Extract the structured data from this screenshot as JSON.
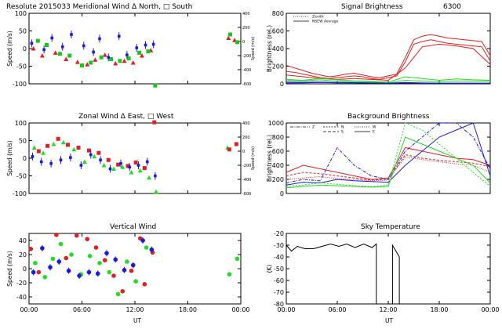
{
  "colors": {
    "north": "#e02020",
    "south": "#ff3030",
    "east": "#1a1ae0",
    "west": "#18c818",
    "green": "#22dd22",
    "red": "#e02020",
    "blue": "#1a1ae0",
    "dark_red": "#b00000"
  },
  "titles": {
    "merid": "Resolute   2015033     Meridional Wind   Δ North, □ South",
    "zonal": "Zonal Wind      Δ East, □ West",
    "vert": "Vertical Wind",
    "sig_left": "Signal Brightness",
    "sig_right": "6300",
    "bg": "Background Brightness",
    "sky": "Sky Temperature"
  },
  "ylabels": {
    "speed": "Speed (m/s)",
    "bright": "Brightness (rel.)",
    "temp": "(K)"
  },
  "xlabel": "UT",
  "xticks": [
    "00:00",
    "06:00",
    "12:00",
    "18:00",
    "00:00"
  ],
  "sig_legend": {
    "zenith": "Zenith",
    "nsew": "NSEW Average"
  },
  "bg_legend": {
    "z": "Z",
    "n": "N",
    "s": "S",
    "w": "W",
    "e": "E"
  },
  "chart_data": [
    {
      "type": "scatter",
      "title": "Meridional Wind",
      "xlabel": "",
      "ylabel": "Speed (m/s)",
      "ylim": [
        -100,
        100
      ],
      "yticks": [
        -100,
        -50,
        0,
        50,
        100
      ],
      "right_ylabel": "Speed (m/s)",
      "right_ylim": [
        -600,
        400
      ],
      "right_yticks": [
        -600,
        -400,
        -200,
        0,
        200,
        400
      ],
      "series": [
        {
          "name": "North",
          "marker": "triangle",
          "color": "red",
          "x": [
            0.5,
            1.5,
            3.0,
            4.2,
            5.5,
            6.6,
            7.5,
            8.6,
            9.8,
            10.8,
            11.8,
            12.8,
            13.8,
            22.6,
            23.3
          ],
          "y": [
            0,
            -20,
            -12,
            -30,
            -38,
            -45,
            -32,
            -18,
            -42,
            -35,
            -40,
            -20,
            -5,
            30,
            24
          ]
        },
        {
          "name": "South",
          "marker": "square",
          "color": "west",
          "x": [
            1.0,
            2.0,
            3.5,
            4.6,
            6.0,
            7.0,
            8.2,
            9.3,
            10.3,
            11.3,
            12.5,
            13.5,
            14.3,
            22.8,
            23.6
          ],
          "y": [
            22,
            10,
            -15,
            -20,
            -48,
            -40,
            -25,
            -30,
            -35,
            -28,
            -12,
            -8,
            -105,
            40,
            18
          ]
        },
        {
          "name": "Zenith",
          "marker": "errorbar",
          "color": "blue",
          "x": [
            0.3,
            1.7,
            2.6,
            3.8,
            4.8,
            6.2,
            7.3,
            8.0,
            9.0,
            10.2,
            11.1,
            12.2,
            13.2,
            14.1
          ],
          "y": [
            15,
            -3,
            30,
            5,
            40,
            8,
            -10,
            28,
            -25,
            35,
            -18,
            2,
            10,
            12
          ]
        }
      ]
    },
    {
      "type": "scatter",
      "title": "Zonal Wind",
      "xlabel": "",
      "ylabel": "Speed (m/s)",
      "ylim": [
        -100,
        100
      ],
      "yticks": [
        -100,
        -50,
        0,
        50,
        100
      ],
      "right_ylabel": "Speed (m/s)",
      "right_ylim": [
        -600,
        400
      ],
      "right_yticks": [
        -600,
        -400,
        -200,
        0,
        200,
        400
      ],
      "series": [
        {
          "name": "East",
          "marker": "triangle",
          "color": "green",
          "x": [
            0.6,
            1.6,
            2.8,
            3.9,
            5.1,
            6.3,
            7.4,
            8.5,
            9.6,
            10.6,
            11.6,
            12.6,
            13.6,
            14.4,
            22.5
          ],
          "y": [
            30,
            15,
            40,
            45,
            25,
            -10,
            5,
            -20,
            -30,
            -25,
            -40,
            -35,
            -55,
            -95,
            30
          ]
        },
        {
          "name": "West",
          "marker": "square",
          "color": "red",
          "x": [
            1.1,
            2.1,
            3.3,
            4.4,
            5.6,
            6.8,
            7.9,
            9.0,
            10.1,
            11.2,
            12.1,
            13.1,
            14.2,
            22.7,
            23.5
          ],
          "y": [
            20,
            35,
            55,
            38,
            30,
            22,
            15,
            -5,
            -18,
            -22,
            -12,
            -28,
            102,
            25,
            40
          ]
        },
        {
          "name": "Zenith",
          "marker": "errorbar",
          "color": "blue",
          "x": [
            0.4,
            1.4,
            2.5,
            3.6,
            4.7,
            5.9,
            7.0,
            8.1,
            9.2,
            10.4,
            11.4,
            12.4,
            13.4,
            14.3
          ],
          "y": [
            5,
            -10,
            -15,
            -5,
            2,
            -20,
            10,
            -5,
            -30,
            -15,
            -25,
            -20,
            -10,
            -50
          ]
        }
      ]
    },
    {
      "type": "scatter",
      "title": "Vertical Wind",
      "xlabel": "UT",
      "ylabel": "Speed (m/s)",
      "ylim": [
        -50,
        50
      ],
      "yticks": [
        -40,
        -20,
        0,
        20,
        40
      ],
      "series": [
        {
          "name": "red",
          "color": "red",
          "x": [
            0.2,
            1.1,
            3.1,
            4.2,
            5.4,
            6.6,
            7.6,
            8.6,
            9.6,
            10.6,
            11.6,
            12.6,
            13.1,
            14.0
          ],
          "y": [
            28,
            -5,
            48,
            15,
            47,
            42,
            30,
            12,
            -10,
            -32,
            -3,
            43,
            -22,
            23
          ]
        },
        {
          "name": "green",
          "color": "green",
          "x": [
            0.7,
            1.8,
            2.7,
            3.6,
            4.8,
            5.9,
            6.9,
            8.0,
            9.1,
            10.1,
            11.1,
            12.1,
            13.3,
            22.7,
            23.6
          ],
          "y": [
            8,
            -12,
            14,
            35,
            20,
            -8,
            18,
            8,
            -5,
            -36,
            10,
            -18,
            30,
            -8,
            14
          ]
        },
        {
          "name": "blue",
          "color": "blue",
          "x": [
            0.5,
            1.5,
            2.4,
            3.4,
            4.5,
            5.7,
            6.8,
            7.8,
            8.8,
            9.8,
            10.8,
            11.8,
            12.9,
            13.9
          ],
          "y": [
            -5,
            29,
            2,
            10,
            -3,
            -10,
            -5,
            -7,
            22,
            13,
            -2,
            5,
            40,
            27
          ]
        }
      ]
    },
    {
      "type": "line",
      "title": "Signal Brightness  6300",
      "xlabel": "",
      "ylabel": "Brightness (rel.)",
      "ylim": [
        0,
        800
      ],
      "yticks": [
        0,
        200,
        400,
        600,
        800
      ],
      "series": [
        {
          "color": "red",
          "x": [
            0,
            1,
            2,
            3,
            4,
            5,
            6,
            7,
            8,
            9,
            10,
            11,
            12,
            13,
            14,
            15,
            16,
            17,
            18,
            19,
            20,
            21,
            22,
            23,
            24
          ],
          "y": [
            210,
            180,
            150,
            120,
            100,
            80,
            90,
            110,
            120,
            100,
            80,
            70,
            90,
            110,
            300,
            500,
            540,
            560,
            540,
            520,
            510,
            500,
            490,
            480,
            320
          ]
        },
        {
          "color": "red",
          "x": [
            0,
            1,
            2,
            3,
            4,
            5,
            6,
            7,
            8,
            9,
            10,
            11,
            12,
            13,
            14,
            15,
            16,
            17,
            18,
            19,
            20,
            21,
            22,
            23,
            24
          ],
          "y": [
            140,
            130,
            110,
            90,
            70,
            60,
            70,
            80,
            90,
            80,
            60,
            50,
            70,
            90,
            250,
            450,
            480,
            500,
            480,
            460,
            450,
            440,
            430,
            420,
            260
          ]
        },
        {
          "color": "red",
          "x": [
            0,
            2,
            4,
            6,
            8,
            10,
            12,
            14,
            16,
            18,
            20,
            22,
            24
          ],
          "y": [
            100,
            80,
            60,
            50,
            60,
            50,
            40,
            180,
            420,
            450,
            430,
            400,
            220
          ]
        },
        {
          "color": "green",
          "x": [
            0,
            2,
            4,
            6,
            8,
            10,
            12,
            14,
            16,
            18,
            20,
            22,
            24
          ],
          "y": [
            50,
            40,
            60,
            45,
            35,
            30,
            20,
            80,
            60,
            40,
            55,
            45,
            40
          ]
        },
        {
          "color": "green",
          "x": [
            0,
            2,
            4,
            6,
            8,
            10,
            12,
            14,
            16,
            18,
            20,
            22,
            24
          ],
          "y": [
            40,
            35,
            45,
            30,
            20,
            20,
            10,
            40,
            30,
            25,
            30,
            30,
            30
          ]
        },
        {
          "color": "blue",
          "x": [
            0,
            2,
            4,
            6,
            8,
            10,
            12,
            14,
            16,
            18,
            20,
            22,
            24
          ],
          "y": [
            10,
            12,
            15,
            12,
            10,
            8,
            5,
            10,
            5,
            5,
            5,
            5,
            5
          ]
        },
        {
          "color": "blue",
          "x": [
            0,
            2,
            4,
            6,
            8,
            10,
            12,
            14,
            16,
            18,
            20,
            22,
            24
          ],
          "y": [
            20,
            18,
            20,
            16,
            14,
            12,
            8,
            15,
            10,
            8,
            8,
            8,
            8
          ]
        }
      ]
    },
    {
      "type": "line",
      "title": "Background Brightness",
      "xlabel": "",
      "ylabel": "Brightness (rel.)",
      "ylim": [
        0,
        1000
      ],
      "yticks": [
        0,
        200,
        400,
        600,
        800,
        1000
      ],
      "series": [
        {
          "color": "red",
          "x": [
            0,
            2,
            4,
            6,
            8,
            10,
            12,
            14,
            16,
            18,
            20,
            22,
            24
          ],
          "y": [
            300,
            400,
            350,
            300,
            250,
            200,
            220,
            650,
            600,
            550,
            500,
            480,
            400
          ]
        },
        {
          "color": "red",
          "x": [
            0,
            2,
            4,
            6,
            8,
            10,
            12,
            14,
            16,
            18,
            20,
            22,
            24
          ],
          "y": [
            250,
            300,
            280,
            250,
            220,
            190,
            200,
            550,
            500,
            470,
            450,
            430,
            380
          ]
        },
        {
          "color": "red",
          "x": [
            0,
            2,
            4,
            6,
            8,
            10,
            12,
            14,
            16,
            18,
            20,
            22,
            24
          ],
          "y": [
            200,
            220,
            240,
            210,
            200,
            180,
            190,
            520,
            480,
            450,
            420,
            400,
            300
          ]
        },
        {
          "color": "blue",
          "x": [
            0,
            2,
            4,
            6,
            8,
            10,
            12,
            14,
            16,
            18,
            20,
            22,
            24
          ],
          "y": [
            150,
            200,
            180,
            650,
            400,
            250,
            200,
            600,
            800,
            1000,
            1000,
            800,
            350
          ]
        },
        {
          "color": "blue",
          "x": [
            0,
            2,
            4,
            6,
            8,
            10,
            12,
            14,
            16,
            18,
            20,
            22,
            24
          ],
          "y": [
            120,
            160,
            150,
            200,
            180,
            170,
            160,
            400,
            600,
            800,
            900,
            1000,
            250
          ]
        },
        {
          "color": "green",
          "x": [
            0,
            2,
            4,
            6,
            8,
            10,
            12,
            14,
            16,
            18,
            20,
            22,
            24
          ],
          "y": [
            100,
            120,
            150,
            130,
            110,
            100,
            120,
            1000,
            900,
            700,
            500,
            300,
            100
          ]
        },
        {
          "color": "green",
          "x": [
            0,
            2,
            4,
            6,
            8,
            10,
            12,
            14,
            16,
            18,
            20,
            22,
            24
          ],
          "y": [
            80,
            100,
            120,
            110,
            100,
            90,
            100,
            800,
            700,
            600,
            500,
            400,
            150
          ]
        }
      ]
    },
    {
      "type": "line",
      "title": "Sky Temperature",
      "xlabel": "UT",
      "ylabel": "(K)",
      "ylim": [
        -80,
        -20
      ],
      "yticks": [
        -80,
        -70,
        -60,
        -50,
        -40,
        -30,
        -20
      ],
      "series": [
        {
          "color": "black",
          "x": [
            0,
            0.6,
            1.3,
            2.2,
            3.2,
            4.2,
            5.2,
            6.2,
            7.1,
            8.1,
            9.1,
            10.1,
            10.6,
            10.6
          ],
          "y": [
            -30,
            -35,
            -31,
            -33,
            -33,
            -31,
            -29,
            -31,
            -29,
            -32,
            -29,
            -32,
            -29,
            -80
          ]
        },
        {
          "color": "black",
          "x": [
            12.5,
            12.5,
            13.3,
            13.3
          ],
          "y": [
            -80,
            -30,
            -40,
            -80
          ]
        }
      ]
    }
  ]
}
